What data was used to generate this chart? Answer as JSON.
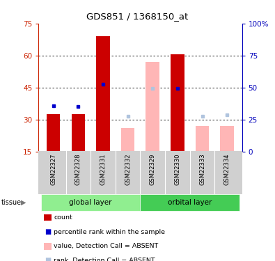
{
  "title": "GDS851 / 1368150_at",
  "samples": [
    "GSM22327",
    "GSM22328",
    "GSM22331",
    "GSM22332",
    "GSM22329",
    "GSM22330",
    "GSM22333",
    "GSM22334"
  ],
  "count_values": [
    32.5,
    32.5,
    69.0,
    null,
    null,
    60.5,
    null,
    null
  ],
  "rank_values": [
    36.5,
    36.0,
    46.5,
    null,
    null,
    44.5,
    null,
    null
  ],
  "absent_count_values": [
    null,
    null,
    null,
    26.0,
    57.0,
    null,
    27.0,
    27.0
  ],
  "absent_rank_values": [
    null,
    null,
    null,
    31.5,
    44.5,
    null,
    31.5,
    32.0
  ],
  "ylim": [
    15,
    75
  ],
  "y2lim": [
    0,
    100
  ],
  "yticks": [
    15,
    30,
    45,
    60,
    75
  ],
  "y2ticks": [
    0,
    25,
    50,
    75,
    100
  ],
  "count_color": "#cc0000",
  "rank_color": "#0000cc",
  "absent_count_color": "#ffb6b6",
  "absent_rank_color": "#b0c4de",
  "left_axis_color": "#cc2200",
  "right_axis_color": "#0000bb",
  "group_names": [
    "global layer",
    "orbital layer"
  ],
  "group_colors": [
    "#90ee90",
    "#44cc55"
  ],
  "group_starts": [
    0,
    4
  ],
  "group_ends": [
    4,
    8
  ]
}
